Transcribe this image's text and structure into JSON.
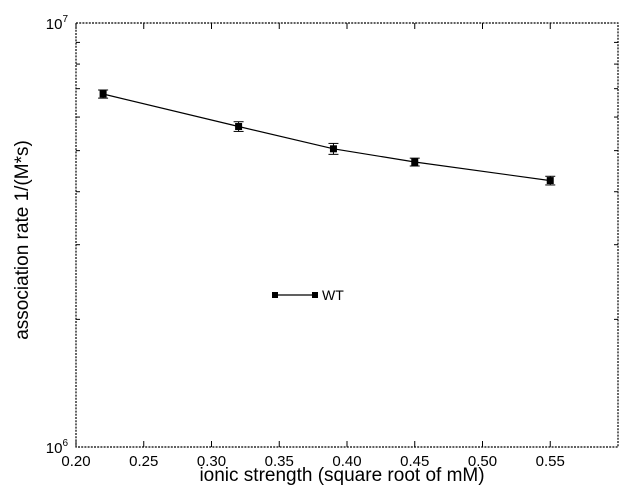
{
  "chart_data": {
    "type": "line",
    "title": "",
    "xlabel": "ionic strength (square root of mM)",
    "ylabel": "association rate 1/(M*s)",
    "xlim": [
      0.2,
      0.6
    ],
    "ylim": [
      1000000,
      10000000
    ],
    "yscale": "log",
    "x_ticks": [
      0.2,
      0.25,
      0.3,
      0.35,
      0.4,
      0.45,
      0.5,
      0.55
    ],
    "x_tick_labels": [
      "0.20",
      "0.25",
      "0.30",
      "0.35",
      "0.40",
      "0.45",
      "0.50",
      "0.55"
    ],
    "y_tick_labels": [
      {
        "value": 1000000,
        "base": "10",
        "exp": "6"
      },
      {
        "value": 10000000,
        "base": "10",
        "exp": "7"
      }
    ],
    "grid": false,
    "legend_position": "center-left",
    "series": [
      {
        "name": "WT",
        "color": "#000000",
        "marker": "square",
        "x": [
          0.22,
          0.32,
          0.39,
          0.45,
          0.55
        ],
        "y": [
          6800000,
          5700000,
          5050000,
          4700000,
          4250000
        ],
        "error": [
          150000,
          150000,
          150000,
          100000,
          100000
        ]
      }
    ]
  }
}
